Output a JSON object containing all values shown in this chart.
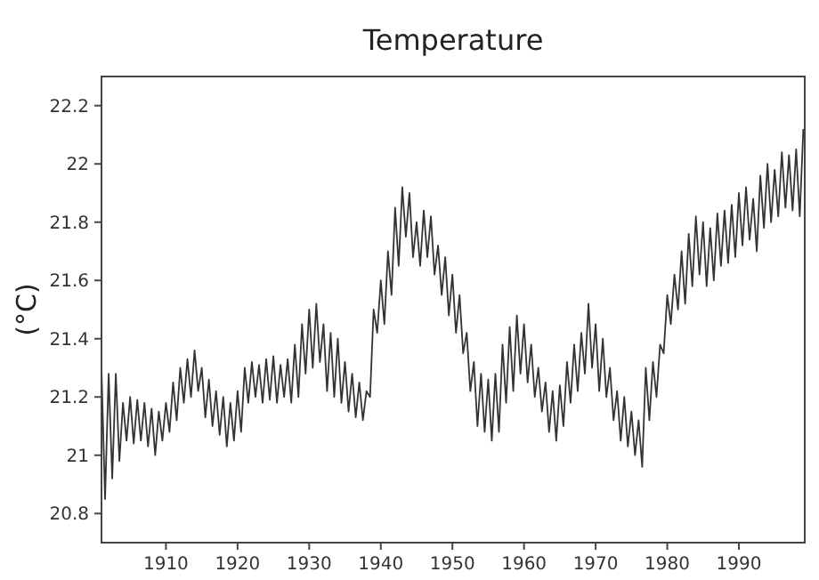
{
  "chart_data": {
    "type": "line",
    "title": "Temperature",
    "ylabel": "(°C)",
    "xlim": [
      1901,
      1999.2
    ],
    "xticks": [
      1910,
      1920,
      1930,
      1940,
      1950,
      1960,
      1970,
      1980,
      1990
    ],
    "ylim": [
      20.7,
      22.3
    ],
    "yticks": [
      20.8,
      21,
      21.2,
      21.4,
      21.6,
      21.8,
      22,
      22.2
    ],
    "grid": false,
    "marker": "none",
    "line_style": "solid",
    "series": [
      {
        "color": "#333333",
        "x": [
          1901,
          1901.5,
          1902,
          1902.5,
          1903,
          1903.5,
          1904,
          1904.5,
          1905,
          1905.5,
          1906,
          1906.5,
          1907,
          1907.5,
          1908,
          1908.5,
          1909,
          1909.5,
          1910,
          1910.5,
          1911,
          1911.5,
          1912,
          1912.5,
          1913,
          1913.5,
          1914,
          1914.5,
          1915,
          1915.5,
          1916,
          1916.5,
          1917,
          1917.5,
          1918,
          1918.5,
          1919,
          1919.5,
          1920,
          1920.5,
          1921,
          1921.5,
          1922,
          1922.5,
          1923,
          1923.5,
          1924,
          1924.5,
          1925,
          1925.5,
          1926,
          1926.5,
          1927,
          1927.5,
          1928,
          1928.5,
          1929,
          1929.5,
          1930,
          1930.5,
          1931,
          1931.5,
          1932,
          1932.5,
          1933,
          1933.5,
          1934,
          1934.5,
          1935,
          1935.5,
          1936,
          1936.5,
          1937,
          1937.5,
          1938,
          1938.5,
          1939,
          1939.5,
          1940,
          1940.5,
          1941,
          1941.5,
          1942,
          1942.5,
          1943,
          1943.5,
          1944,
          1944.5,
          1945,
          1945.5,
          1946,
          1946.5,
          1947,
          1947.5,
          1948,
          1948.5,
          1949,
          1949.5,
          1950,
          1950.5,
          1951,
          1951.5,
          1952,
          1952.5,
          1953,
          1953.5,
          1954,
          1954.5,
          1955,
          1955.5,
          1956,
          1956.5,
          1957,
          1957.5,
          1958,
          1958.5,
          1959,
          1959.5,
          1960,
          1960.5,
          1961,
          1961.5,
          1962,
          1962.5,
          1963,
          1963.5,
          1964,
          1964.5,
          1965,
          1965.5,
          1966,
          1966.5,
          1967,
          1967.5,
          1968,
          1968.5,
          1969,
          1969.5,
          1970,
          1970.5,
          1971,
          1971.5,
          1972,
          1972.5,
          1973,
          1973.5,
          1974,
          1974.5,
          1975,
          1975.5,
          1976,
          1976.5,
          1977,
          1977.5,
          1978,
          1978.5,
          1979,
          1979.5,
          1980,
          1980.5,
          1981,
          1981.5,
          1982,
          1982.5,
          1983,
          1983.5,
          1984,
          1984.5,
          1985,
          1985.5,
          1986,
          1986.5,
          1987,
          1987.5,
          1988,
          1988.5,
          1989,
          1989.5,
          1990,
          1990.5,
          1991,
          1991.5,
          1992,
          1992.5,
          1993,
          1993.5,
          1994,
          1994.5,
          1995,
          1995.5,
          1996,
          1996.5,
          1997,
          1997.5,
          1998,
          1998.5,
          1999
        ],
        "values": [
          21.3,
          20.85,
          21.28,
          20.92,
          21.28,
          20.98,
          21.18,
          21.05,
          21.2,
          21.04,
          21.19,
          21.05,
          21.18,
          21.03,
          21.16,
          21.0,
          21.15,
          21.05,
          21.18,
          21.08,
          21.25,
          21.12,
          21.3,
          21.18,
          21.33,
          21.2,
          21.36,
          21.22,
          21.3,
          21.13,
          21.26,
          21.1,
          21.22,
          21.07,
          21.2,
          21.03,
          21.18,
          21.05,
          21.22,
          21.08,
          21.3,
          21.18,
          21.32,
          21.2,
          21.31,
          21.18,
          21.33,
          21.19,
          21.34,
          21.18,
          21.31,
          21.2,
          21.33,
          21.18,
          21.38,
          21.2,
          21.45,
          21.28,
          21.5,
          21.3,
          21.52,
          21.32,
          21.45,
          21.22,
          21.42,
          21.2,
          21.4,
          21.18,
          21.32,
          21.15,
          21.28,
          21.13,
          21.25,
          21.12,
          21.22,
          21.2,
          21.5,
          21.42,
          21.6,
          21.45,
          21.7,
          21.55,
          21.85,
          21.65,
          21.92,
          21.75,
          21.9,
          21.68,
          21.8,
          21.65,
          21.84,
          21.68,
          21.82,
          21.62,
          21.72,
          21.55,
          21.68,
          21.48,
          21.62,
          21.42,
          21.55,
          21.35,
          21.42,
          21.22,
          21.32,
          21.1,
          21.28,
          21.08,
          21.26,
          21.05,
          21.28,
          21.08,
          21.38,
          21.18,
          21.44,
          21.22,
          21.48,
          21.28,
          21.45,
          21.25,
          21.38,
          21.2,
          21.3,
          21.15,
          21.25,
          21.08,
          21.22,
          21.05,
          21.24,
          21.1,
          21.32,
          21.18,
          21.38,
          21.22,
          21.42,
          21.28,
          21.52,
          21.3,
          21.45,
          21.22,
          21.4,
          21.2,
          21.3,
          21.12,
          21.22,
          21.05,
          21.2,
          21.03,
          21.15,
          21.0,
          21.12,
          20.96,
          21.3,
          21.12,
          21.32,
          21.2,
          21.38,
          21.35,
          21.55,
          21.45,
          21.62,
          21.5,
          21.7,
          21.52,
          21.76,
          21.58,
          21.82,
          21.62,
          21.8,
          21.58,
          21.78,
          21.6,
          21.83,
          21.65,
          21.84,
          21.66,
          21.86,
          21.68,
          21.9,
          21.72,
          21.92,
          21.74,
          21.88,
          21.7,
          21.96,
          21.78,
          22.0,
          21.8,
          21.98,
          21.82,
          22.04,
          21.85,
          22.03,
          21.84,
          22.05,
          21.82,
          22.12
        ]
      }
    ]
  }
}
